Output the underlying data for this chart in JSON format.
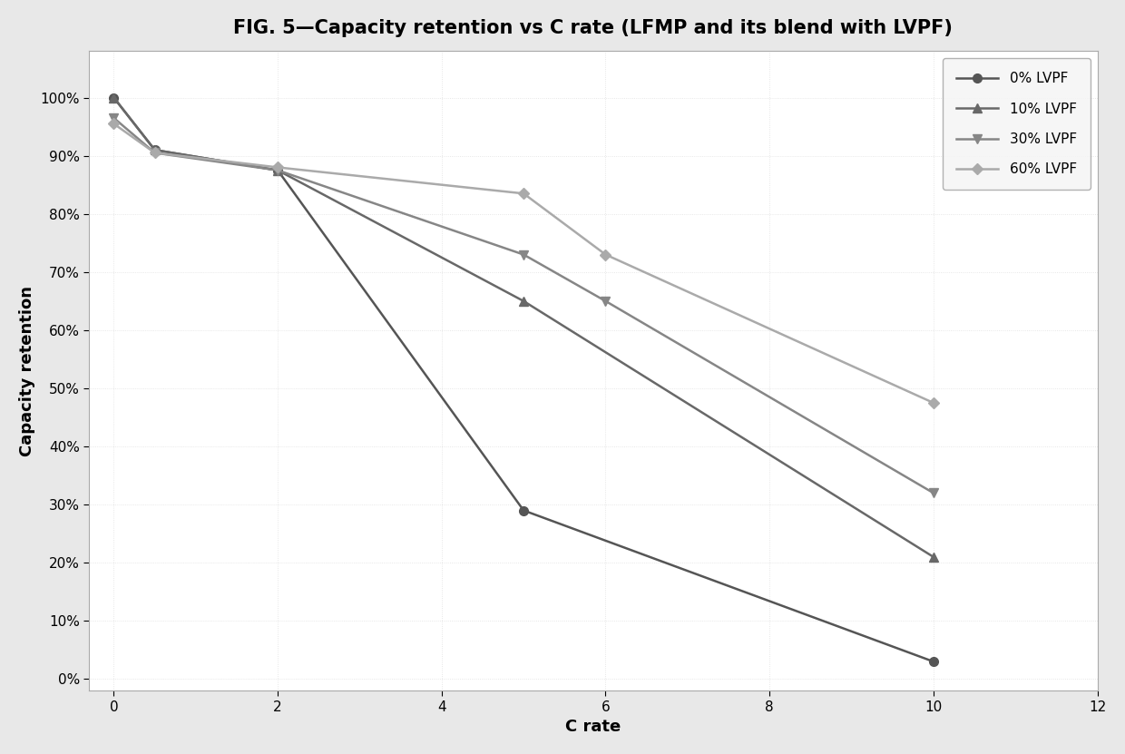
{
  "title": "FIG. 5—Capacity retention vs C rate (LFMP and its blend with LVPF)",
  "xlabel": "C rate",
  "ylabel": "Capacity retention",
  "xlim": [
    -0.3,
    12
  ],
  "ylim": [
    -0.02,
    1.08
  ],
  "xticks": [
    0,
    2,
    4,
    6,
    8,
    10,
    12
  ],
  "yticks": [
    0.0,
    0.1,
    0.2,
    0.3,
    0.4,
    0.5,
    0.6,
    0.7,
    0.8,
    0.9,
    1.0
  ],
  "series": [
    {
      "label": "0% LVPF",
      "x": [
        0,
        0.5,
        2,
        5,
        10
      ],
      "y": [
        1.0,
        0.91,
        0.875,
        0.29,
        0.03
      ],
      "color": "#555555",
      "marker": "o",
      "linewidth": 1.8,
      "markersize": 7
    },
    {
      "label": "10% LVPF",
      "x": [
        0,
        0.5,
        2,
        5,
        10
      ],
      "y": [
        1.0,
        0.91,
        0.875,
        0.65,
        0.21
      ],
      "color": "#686868",
      "marker": "^",
      "linewidth": 1.8,
      "markersize": 7
    },
    {
      "label": "30% LVPF",
      "x": [
        0,
        0.5,
        2,
        5,
        6,
        10
      ],
      "y": [
        0.965,
        0.905,
        0.875,
        0.73,
        0.65,
        0.32
      ],
      "color": "#868686",
      "marker": "v",
      "linewidth": 1.8,
      "markersize": 7
    },
    {
      "label": "60% LVPF",
      "x": [
        0,
        0.5,
        2,
        5,
        6,
        10
      ],
      "y": [
        0.955,
        0.905,
        0.88,
        0.835,
        0.73,
        0.475
      ],
      "color": "#aaaaaa",
      "marker": "D",
      "linewidth": 1.8,
      "markersize": 6
    }
  ],
  "plot_bg": "#ffffff",
  "fig_bg": "#e8e8e8",
  "grid_color": "#cccccc",
  "grid_alpha": 0.6,
  "legend_loc": "upper right",
  "title_fontsize": 15,
  "label_fontsize": 13,
  "tick_fontsize": 11,
  "legend_fontsize": 11
}
